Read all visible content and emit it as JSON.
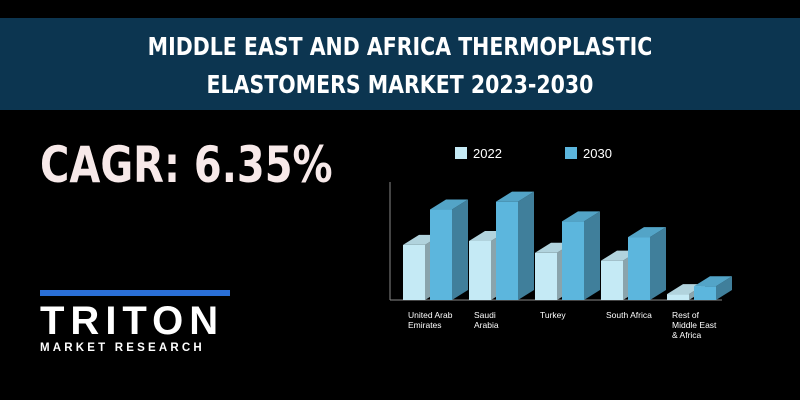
{
  "header": {
    "title": [
      "MIDDLE EAST AND AFRICA THERMOPLASTIC",
      "ELASTOMERS MARKET 2023-2030"
    ]
  },
  "cagr": "CAGR: 6.35%",
  "logo": {
    "name": "TRITON",
    "tagline": "MARKET RESEARCH"
  },
  "chart_data": {
    "type": "bar3d",
    "categories": [
      "United Arab Emirates",
      "Saudi Arabia",
      "Turkey",
      "South Africa",
      "Rest of Middle East & Africa"
    ],
    "series": [
      {
        "name": "2022",
        "color": "#c5eaf5",
        "values": [
          1.4,
          1.5,
          1.2,
          1.0,
          0.15
        ]
      },
      {
        "name": "2030",
        "color": "#5cb6dd",
        "values": [
          2.3,
          2.5,
          2.0,
          1.6,
          0.35
        ]
      }
    ],
    "ylim": [
      0,
      3
    ]
  }
}
